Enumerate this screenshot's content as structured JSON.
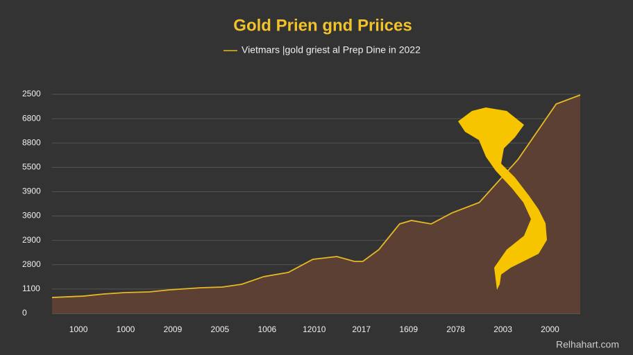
{
  "chart_data": {
    "type": "area",
    "title": "Gold Prien gnd Priices",
    "watermark": "Relhahart.com",
    "x": [
      -0.56,
      0.1,
      0.54,
      0.98,
      1.5,
      1.94,
      2.6,
      3.05,
      3.46,
      3.93,
      4.45,
      4.97,
      5.48,
      5.85,
      6.03,
      6.37,
      6.81,
      7.06,
      7.48,
      7.92,
      8.5,
      9.32,
      10.13,
      10.64
    ],
    "series": [
      {
        "name": "Vietmars |gold griest al Prep Dine in 2022",
        "color": "#e8b923",
        "values": [
          183,
          199,
          223,
          239,
          247,
          271,
          295,
          303,
          335,
          423,
          471,
          622,
          654,
          598,
          598,
          734,
          1029,
          1069,
          1029,
          1156,
          1276,
          1770,
          2408,
          2512
        ]
      }
    ],
    "xlim": [
      -0.56,
      10.64
    ],
    "xticks": [
      {
        "value": 0,
        "label": "1000"
      },
      {
        "value": 1,
        "label": "1000"
      },
      {
        "value": 2,
        "label": "2009"
      },
      {
        "value": 3,
        "label": "2005"
      },
      {
        "value": 4,
        "label": "1006"
      },
      {
        "value": 5,
        "label": "12010"
      },
      {
        "value": 6,
        "label": "2017"
      },
      {
        "value": 7,
        "label": "1609"
      },
      {
        "value": 8,
        "label": "2078"
      },
      {
        "value": 9,
        "label": "2003"
      },
      {
        "value": 10,
        "label": "2000"
      }
    ],
    "ylim": [
      0,
      2520
    ],
    "yticks": [
      0,
      {
        "value": 280,
        "label": "1100"
      },
      {
        "value": 560,
        "label": "2800"
      },
      {
        "value": 840,
        "label": "2900"
      },
      {
        "value": 1120,
        "label": "3600"
      },
      {
        "value": 1400,
        "label": "3900"
      },
      {
        "value": 1680,
        "label": "5500"
      },
      {
        "value": 1960,
        "label": "8800"
      },
      {
        "value": 2240,
        "label": "6800"
      },
      {
        "value": 2520,
        "label": "2500"
      }
    ],
    "grid": true,
    "area_color": "#5b4033"
  }
}
